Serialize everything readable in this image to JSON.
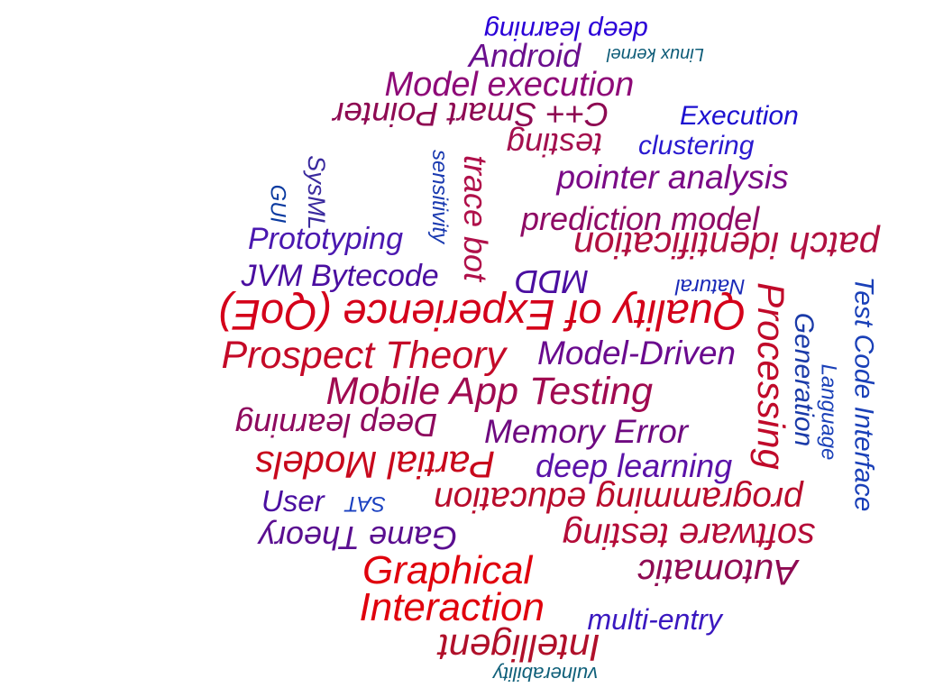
{
  "word_cloud": {
    "words": [
      {
        "text": "deep learning",
        "color": "#2a00d8",
        "rotate": 180
      },
      {
        "text": "Android",
        "color": "#6a0f8e",
        "rotate": 0
      },
      {
        "text": "Linux kernel",
        "color": "#0e5c78",
        "rotate": 180
      },
      {
        "text": "Model execution",
        "color": "#8e0a78",
        "rotate": 0
      },
      {
        "text": "C++ Smart Pointer",
        "color": "#8e0a52",
        "rotate": 180
      },
      {
        "text": "Execution",
        "color": "#1c10d0",
        "rotate": 0
      },
      {
        "text": "SysML",
        "color": "#3a2a9e",
        "rotate": 90
      },
      {
        "text": "GUI",
        "color": "#0a3aa0",
        "rotate": 90
      },
      {
        "text": "sensitivity",
        "color": "#1a3ab0",
        "rotate": 90
      },
      {
        "text": "trace bot",
        "color": "#b0104a",
        "rotate": 90
      },
      {
        "text": "testing",
        "color": "#a4104e",
        "rotate": 180
      },
      {
        "text": "clustering",
        "color": "#2a1ad0",
        "rotate": 0
      },
      {
        "text": "pointer analysis",
        "color": "#7a0a86",
        "rotate": 0
      },
      {
        "text": "prediction model",
        "color": "#8e0a64",
        "rotate": 0
      },
      {
        "text": "Prototyping",
        "color": "#4a18b0",
        "rotate": 0
      },
      {
        "text": "patch identification",
        "color": "#b01040",
        "rotate": 180
      },
      {
        "text": "JVM Bytecode",
        "color": "#4a0ea0",
        "rotate": 0
      },
      {
        "text": "MDD",
        "color": "#4a0ea0",
        "rotate": 180
      },
      {
        "text": "Natural",
        "color": "#1a2ab8",
        "rotate": 180
      },
      {
        "text": "Processing",
        "color": "#c00a2a",
        "rotate": 90
      },
      {
        "text": "Generation",
        "color": "#1a3aa8",
        "rotate": 90
      },
      {
        "text": "Language",
        "color": "#1a40b8",
        "rotate": 90
      },
      {
        "text": "Test Code Interface",
        "color": "#1a40b8",
        "rotate": 90
      },
      {
        "text": "Quality of Experience (QoE)",
        "color": "#d4001a",
        "rotate": 180
      },
      {
        "text": "Prospect Theory",
        "color": "#c40a28",
        "rotate": 0
      },
      {
        "text": "Model-Driven",
        "color": "#6a0a8e",
        "rotate": 0
      },
      {
        "text": "Mobile App Testing",
        "color": "#a00a50",
        "rotate": 0
      },
      {
        "text": "Deep learning",
        "color": "#8e0a5e",
        "rotate": 180
      },
      {
        "text": "Memory Error",
        "color": "#6e0a80",
        "rotate": 0
      },
      {
        "text": "Partial Models",
        "color": "#c8081c",
        "rotate": 180
      },
      {
        "text": "deep learning",
        "color": "#5a12a8",
        "rotate": 0
      },
      {
        "text": "User",
        "color": "#4a0ea0",
        "rotate": 0
      },
      {
        "text": "SAT",
        "color": "#1a40c0",
        "rotate": 180
      },
      {
        "text": "programming education",
        "color": "#b80c2c",
        "rotate": 180
      },
      {
        "text": "Game Theory",
        "color": "#5a0e90",
        "rotate": 180
      },
      {
        "text": "software testing",
        "color": "#b40c38",
        "rotate": 180
      },
      {
        "text": "Graphical",
        "color": "#e0000c",
        "rotate": 0
      },
      {
        "text": "Automatic",
        "color": "#8e0a52",
        "rotate": 180
      },
      {
        "text": "Interaction",
        "color": "#e0000c",
        "rotate": 0
      },
      {
        "text": "multi-entry",
        "color": "#3a18c0",
        "rotate": 0
      },
      {
        "text": "Intelligent",
        "color": "#b0102a",
        "rotate": 180
      },
      {
        "text": "vulnerability",
        "color": "#10607a",
        "rotate": 180
      }
    ]
  }
}
